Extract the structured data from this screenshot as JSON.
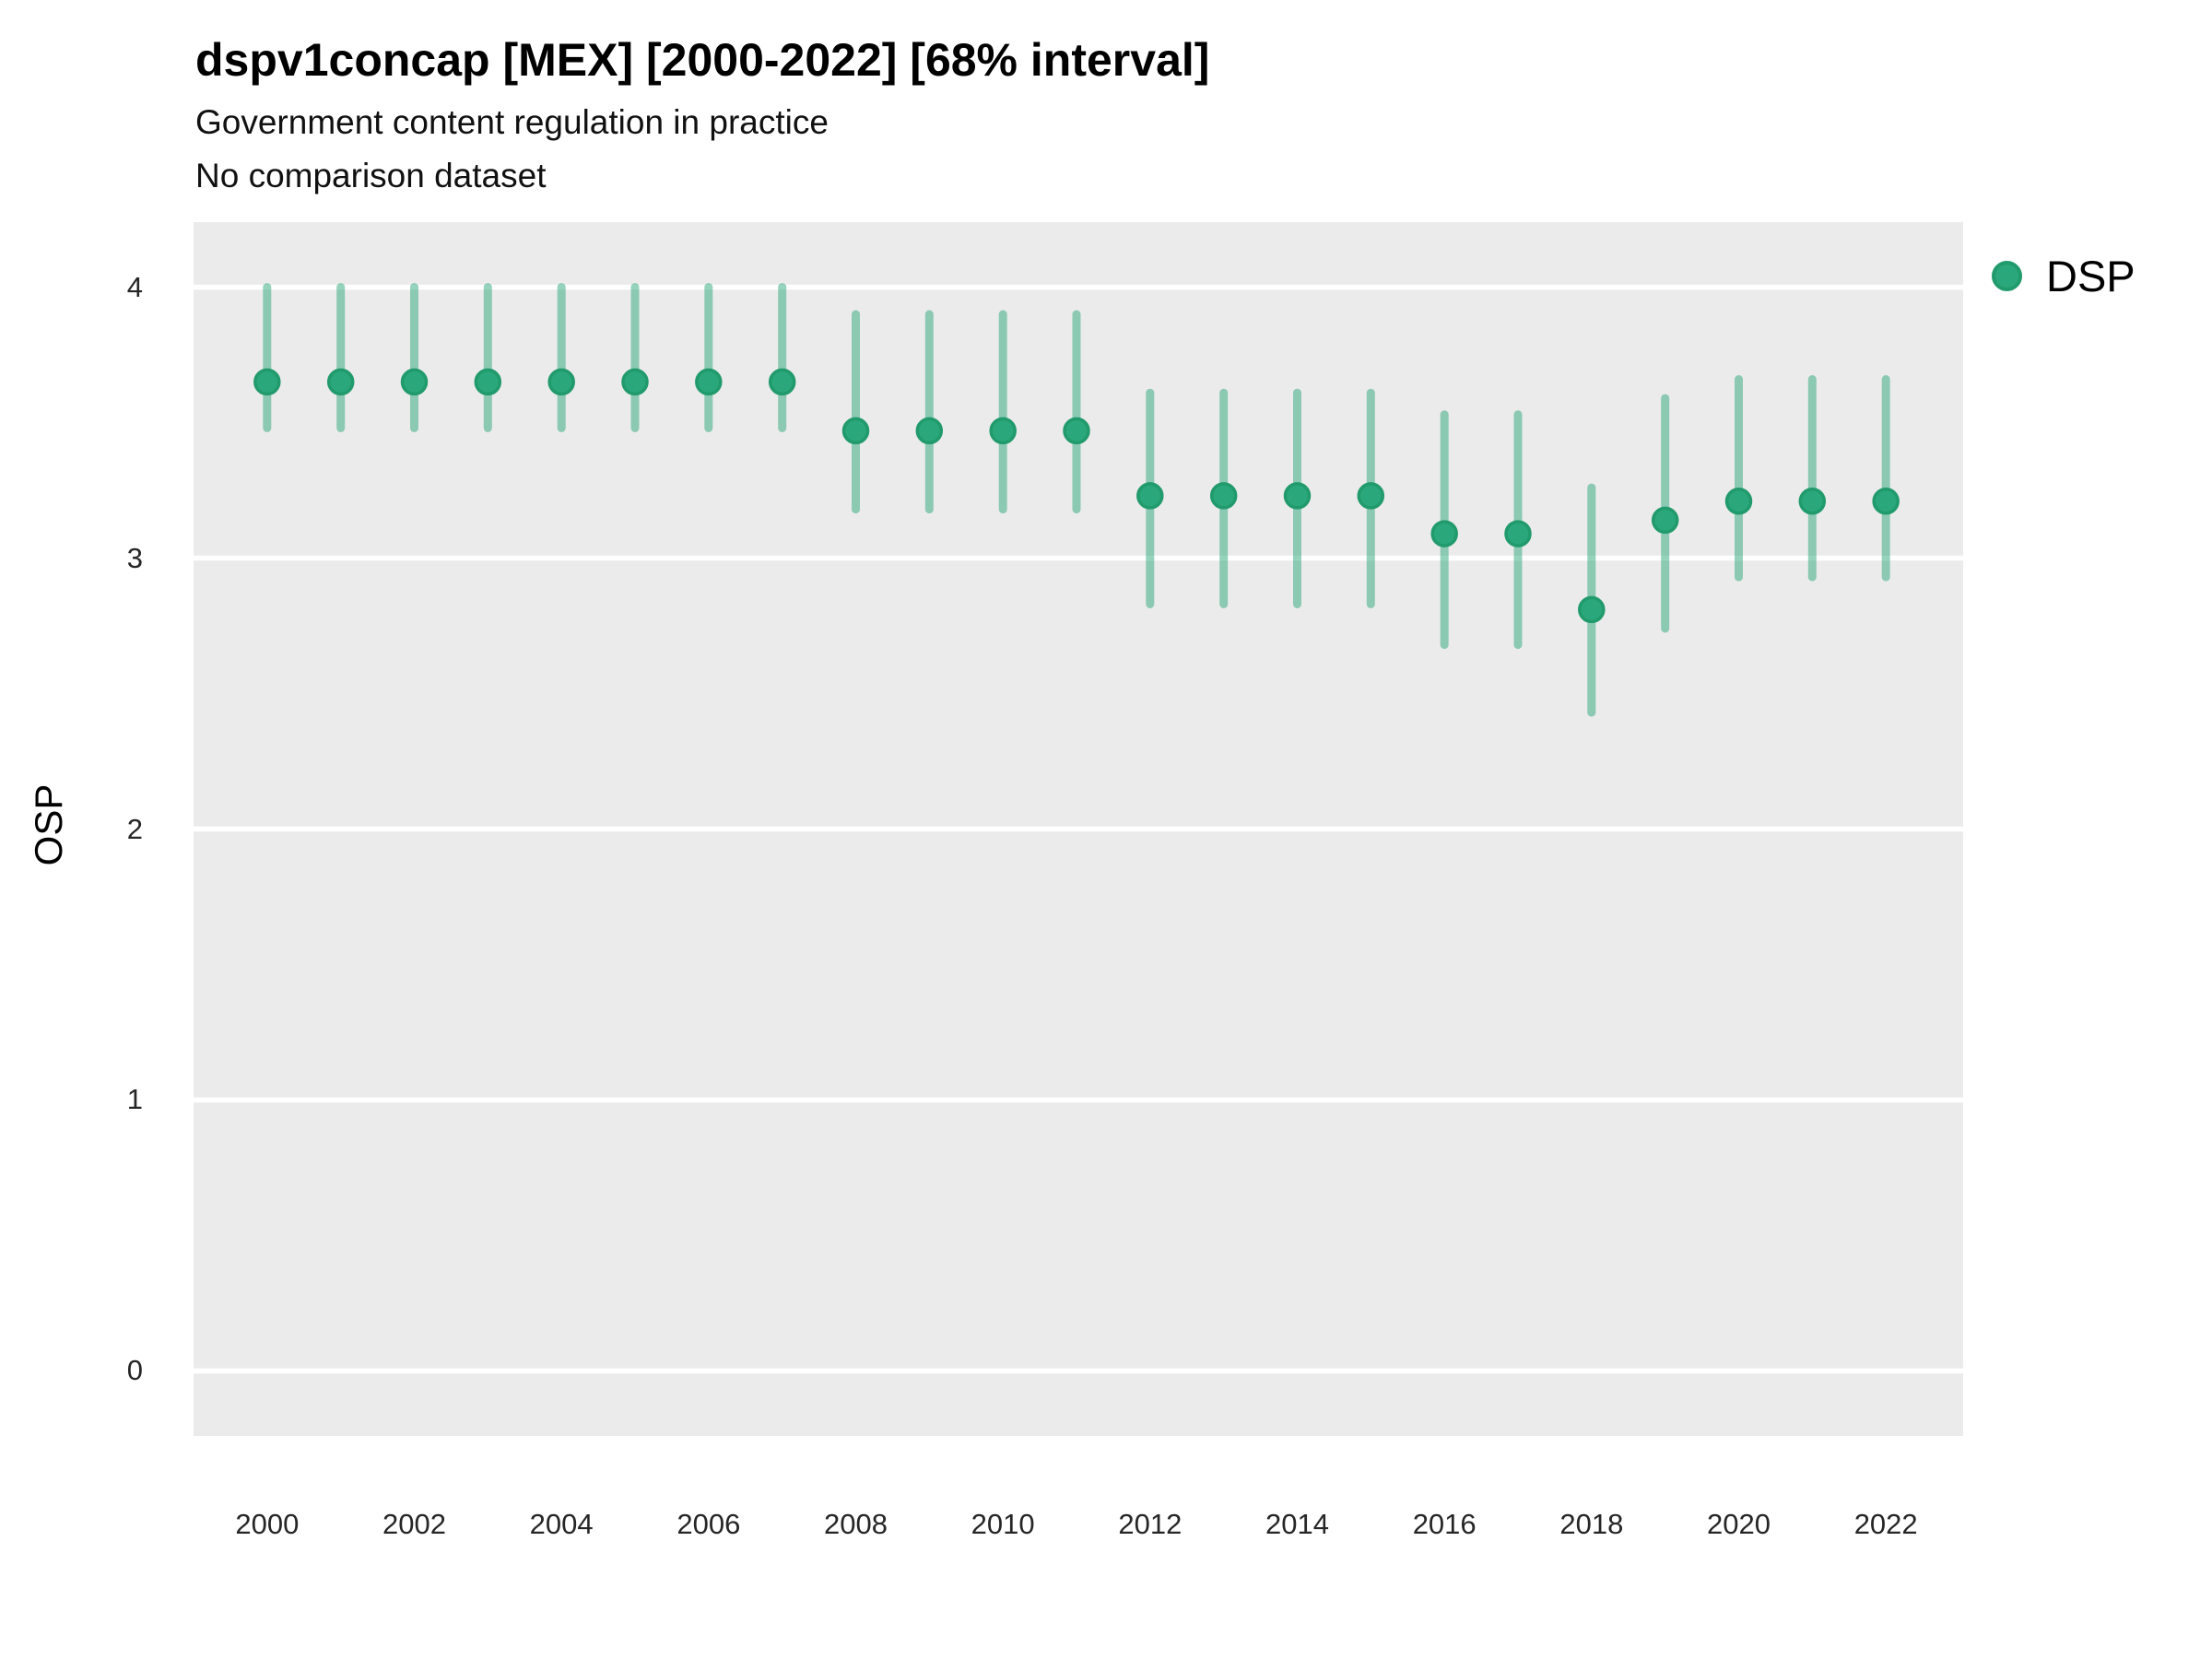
{
  "header": {
    "title": "dspv1concap [MEX] [2000-2022] [68% interval]",
    "subtitle": "Government content regulation in practice",
    "subtitle2": "No comparison dataset"
  },
  "axes": {
    "y_title": "OSP",
    "x_title": ""
  },
  "legend": {
    "items": [
      {
        "label": "DSP",
        "color": "#2ba87b",
        "border_color": "#219a6c"
      }
    ]
  },
  "colors": {
    "panel_background": "#ebebeb",
    "page_background": "#ffffff",
    "gridline": "#ffffff",
    "point_fill": "#2ba87b",
    "point_stroke": "#219a6c",
    "interval_line": "rgba(43,168,123,0.5)",
    "tick_text": "#262626",
    "title_text": "#000000"
  },
  "chart_data": {
    "type": "scatter",
    "variant": "pointrange",
    "title": "dspv1concap [MEX] [2000-2022] [68% interval]",
    "subtitle": "Government content regulation in practice",
    "note": "No comparison dataset",
    "xlabel": "",
    "ylabel": "OSP",
    "interval_level": "68%",
    "country": "MEX",
    "grid": "major horizontal white lines on gray panel",
    "legend_position": "right-top",
    "x_ticks": [
      2000,
      2002,
      2004,
      2006,
      2008,
      2010,
      2012,
      2014,
      2016,
      2018,
      2020,
      2022
    ],
    "y_ticks": [
      0,
      1,
      2,
      3,
      4
    ],
    "xlim": [
      1999.0,
      2023.05
    ],
    "ylim": [
      -0.24,
      4.24
    ],
    "series": [
      {
        "name": "DSP",
        "points": [
          {
            "x": 2000,
            "y": 3.65,
            "lo": 3.48,
            "hi": 4.0
          },
          {
            "x": 2001,
            "y": 3.65,
            "lo": 3.48,
            "hi": 4.0
          },
          {
            "x": 2002,
            "y": 3.65,
            "lo": 3.48,
            "hi": 4.0
          },
          {
            "x": 2003,
            "y": 3.65,
            "lo": 3.48,
            "hi": 4.0
          },
          {
            "x": 2004,
            "y": 3.65,
            "lo": 3.48,
            "hi": 4.0
          },
          {
            "x": 2005,
            "y": 3.65,
            "lo": 3.48,
            "hi": 4.0
          },
          {
            "x": 2006,
            "y": 3.65,
            "lo": 3.48,
            "hi": 4.0
          },
          {
            "x": 2007,
            "y": 3.65,
            "lo": 3.48,
            "hi": 4.0
          },
          {
            "x": 2008,
            "y": 3.47,
            "lo": 3.18,
            "hi": 3.9
          },
          {
            "x": 2009,
            "y": 3.47,
            "lo": 3.18,
            "hi": 3.9
          },
          {
            "x": 2010,
            "y": 3.47,
            "lo": 3.18,
            "hi": 3.9
          },
          {
            "x": 2011,
            "y": 3.47,
            "lo": 3.18,
            "hi": 3.9
          },
          {
            "x": 2012,
            "y": 3.23,
            "lo": 2.83,
            "hi": 3.61
          },
          {
            "x": 2013,
            "y": 3.23,
            "lo": 2.83,
            "hi": 3.61
          },
          {
            "x": 2014,
            "y": 3.23,
            "lo": 2.83,
            "hi": 3.61
          },
          {
            "x": 2015,
            "y": 3.23,
            "lo": 2.83,
            "hi": 3.61
          },
          {
            "x": 2016,
            "y": 3.09,
            "lo": 2.68,
            "hi": 3.53
          },
          {
            "x": 2017,
            "y": 3.09,
            "lo": 2.68,
            "hi": 3.53
          },
          {
            "x": 2018,
            "y": 2.81,
            "lo": 2.43,
            "hi": 3.26
          },
          {
            "x": 2019,
            "y": 3.14,
            "lo": 2.74,
            "hi": 3.59
          },
          {
            "x": 2020,
            "y": 3.21,
            "lo": 2.93,
            "hi": 3.66
          },
          {
            "x": 2021,
            "y": 3.21,
            "lo": 2.93,
            "hi": 3.66
          },
          {
            "x": 2022,
            "y": 3.21,
            "lo": 2.93,
            "hi": 3.66
          }
        ]
      }
    ]
  }
}
